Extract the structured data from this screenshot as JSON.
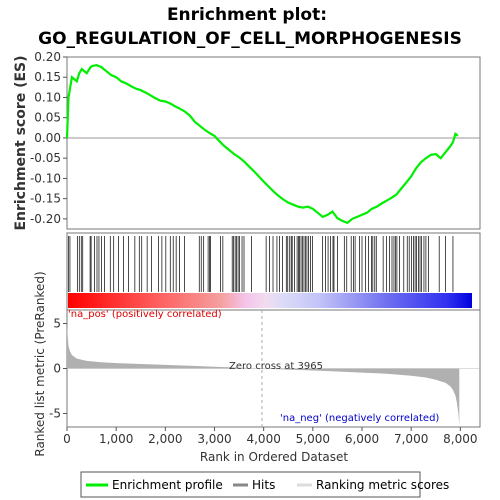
{
  "title_line1": "Enrichment plot:",
  "title_line2": "GO_REGULATION_OF_CELL_MORPHOGENESIS",
  "colors": {
    "enrichment_line": "#00ee00",
    "hits": "#000000",
    "metric_fill": "#b0b0b0",
    "pos_label": "#dd0000",
    "neg_label": "#0000cc",
    "red_band": "#ff0000",
    "blue_band": "#0000ff"
  },
  "labels": {
    "na_pos": "'na_pos' (positively correlated)",
    "na_neg": "'na_neg' (negatively correlated)",
    "zero_cross": "Zero cross at 3965"
  },
  "legend": {
    "profile": "Enrichment profile",
    "hits": "Hits",
    "metric": "Ranking metric scores"
  },
  "chart_data": [
    {
      "type": "line",
      "name": "enrichment_profile",
      "ylabel": "Enrichment score (ES)",
      "xlim": [
        0,
        8400
      ],
      "ylim": [
        -0.225,
        0.2
      ],
      "yticks": [
        -0.2,
        -0.15,
        -0.1,
        -0.05,
        0.0,
        0.05,
        0.1,
        0.15,
        0.2
      ],
      "tick_labels": [
        "-0.20",
        "-0.15",
        "-0.10",
        "-0.05",
        "0.00",
        "0.05",
        "0.10",
        "0.15",
        "0.20"
      ],
      "x": [
        0,
        30,
        100,
        200,
        250,
        300,
        400,
        480,
        520,
        600,
        700,
        800,
        900,
        1000,
        1100,
        1200,
        1300,
        1400,
        1500,
        1600,
        1700,
        1800,
        1900,
        2000,
        2100,
        2200,
        2300,
        2400,
        2500,
        2600,
        2700,
        2800,
        2900,
        3000,
        3100,
        3200,
        3300,
        3400,
        3500,
        3600,
        3700,
        3800,
        3900,
        4000,
        4100,
        4200,
        4300,
        4400,
        4500,
        4600,
        4700,
        4800,
        4900,
        5000,
        5100,
        5200,
        5300,
        5400,
        5500,
        5600,
        5700,
        5800,
        5900,
        6000,
        6100,
        6200,
        6300,
        6400,
        6500,
        6600,
        6700,
        6800,
        6900,
        7000,
        7050,
        7100,
        7200,
        7300,
        7400,
        7500,
        7600,
        7700,
        7800,
        7850,
        7900,
        7950
      ],
      "y": [
        0.0,
        0.1,
        0.15,
        0.14,
        0.16,
        0.17,
        0.16,
        0.175,
        0.178,
        0.18,
        0.175,
        0.165,
        0.155,
        0.15,
        0.14,
        0.135,
        0.128,
        0.122,
        0.118,
        0.112,
        0.105,
        0.098,
        0.092,
        0.09,
        0.085,
        0.078,
        0.072,
        0.065,
        0.055,
        0.04,
        0.03,
        0.02,
        0.012,
        0.005,
        -0.008,
        -0.02,
        -0.03,
        -0.04,
        -0.048,
        -0.058,
        -0.07,
        -0.082,
        -0.095,
        -0.108,
        -0.12,
        -0.132,
        -0.143,
        -0.152,
        -0.16,
        -0.165,
        -0.17,
        -0.172,
        -0.17,
        -0.175,
        -0.185,
        -0.195,
        -0.19,
        -0.182,
        -0.198,
        -0.205,
        -0.21,
        -0.2,
        -0.195,
        -0.19,
        -0.185,
        -0.175,
        -0.17,
        -0.162,
        -0.155,
        -0.148,
        -0.14,
        -0.125,
        -0.11,
        -0.095,
        -0.085,
        -0.075,
        -0.06,
        -0.05,
        -0.042,
        -0.04,
        -0.05,
        -0.035,
        -0.02,
        -0.01,
        0.01,
        0.005
      ]
    },
    {
      "type": "scatter",
      "name": "hits",
      "xlim": [
        0,
        8400
      ],
      "x": [
        30,
        60,
        210,
        250,
        290,
        320,
        470,
        490,
        560,
        610,
        650,
        700,
        760,
        880,
        950,
        1050,
        1150,
        1250,
        1380,
        1470,
        1520,
        1630,
        1720,
        1860,
        1930,
        2010,
        2100,
        2160,
        2220,
        2290,
        2390,
        2690,
        2730,
        2780,
        2870,
        2900,
        2920,
        3120,
        3170,
        3360,
        3390,
        3420,
        3450,
        3480,
        3510,
        3560,
        3600,
        3750,
        4050,
        4120,
        4190,
        4270,
        4320,
        4380,
        4460,
        4490,
        4530,
        4560,
        4580,
        4630,
        4680,
        4710,
        4730,
        4760,
        4790,
        4820,
        4850,
        4880,
        4910,
        4950,
        4990,
        5200,
        5260,
        5310,
        5360,
        5410,
        5430,
        5500,
        5640,
        5690,
        5780,
        5830,
        5860,
        5950,
        6000,
        6070,
        6130,
        6190,
        6220,
        6260,
        6290,
        6430,
        6500,
        6560,
        6610,
        6650,
        6680,
        6710,
        6760,
        6850,
        6920,
        6960,
        7010,
        7050,
        7080,
        7110,
        7150,
        7180,
        7210,
        7260,
        7300,
        7350,
        7570,
        7700,
        7850
      ]
    },
    {
      "type": "area",
      "name": "ranked_list_metric",
      "xlabel": "Rank in Ordered Dataset",
      "ylabel": "Ranked list metric (PreRanked)",
      "xlim": [
        0,
        8400
      ],
      "ylim": [
        -6.5,
        6.5
      ],
      "yticks": [
        -5,
        0,
        5
      ],
      "xticks": [
        0,
        1000,
        2000,
        3000,
        4000,
        5000,
        6000,
        7000,
        8000
      ],
      "xtick_labels": [
        "0",
        "1,000",
        "2,000",
        "3,000",
        "4,000",
        "5,000",
        "6,000",
        "7,000",
        "8,000"
      ],
      "zero_cross": 3965,
      "x": [
        0,
        10,
        30,
        60,
        100,
        200,
        400,
        700,
        1000,
        1500,
        2000,
        2500,
        3000,
        3500,
        3965,
        4500,
        5000,
        5500,
        6000,
        6500,
        7000,
        7300,
        7500,
        7700,
        7800,
        7850,
        7900,
        7930,
        7960,
        7980
      ],
      "y": [
        5.0,
        4.0,
        2.5,
        1.9,
        1.5,
        1.1,
        0.85,
        0.7,
        0.6,
        0.5,
        0.4,
        0.3,
        0.2,
        0.1,
        0.0,
        -0.12,
        -0.22,
        -0.33,
        -0.45,
        -0.58,
        -0.8,
        -1.0,
        -1.25,
        -1.6,
        -2.0,
        -2.4,
        -3.0,
        -3.8,
        -5.0,
        -6.3
      ]
    }
  ]
}
